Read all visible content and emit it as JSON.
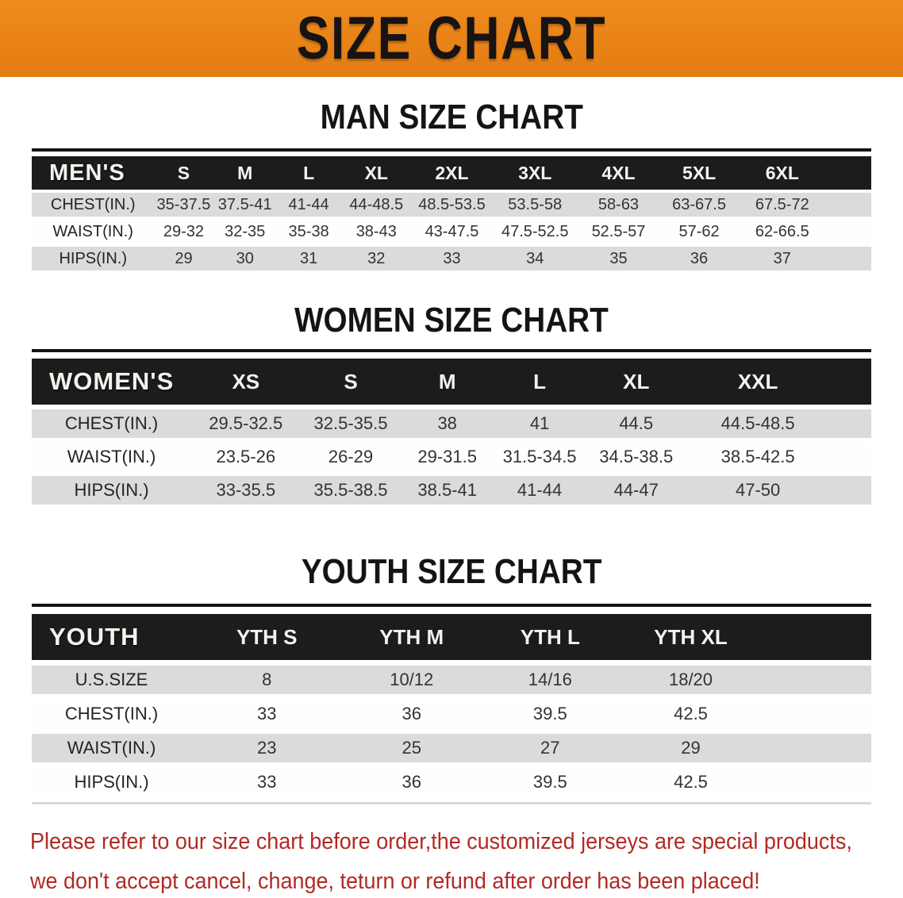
{
  "banner": {
    "title": "SIZE CHART"
  },
  "colors": {
    "banner_orange": "#e8811a",
    "header_bar_black": "#1d1c1c",
    "row_stripe_gray": "#dbdbdb",
    "footnote_red": "#b12a24"
  },
  "sections": [
    {
      "heading": "MAN SIZE CHART",
      "label_header": "MEN'S",
      "columns": [
        "S",
        "M",
        "L",
        "XL",
        "2XL",
        "3XL",
        "4XL",
        "5XL",
        "6XL"
      ],
      "rows": [
        {
          "label": "CHEST(IN.)",
          "values": [
            "35-37.5",
            "37.5-41",
            "41-44",
            "44-48.5",
            "48.5-53.5",
            "53.5-58",
            "58-63",
            "63-67.5",
            "67.5-72"
          ]
        },
        {
          "label": "WAIST(IN.)",
          "values": [
            "29-32",
            "32-35",
            "35-38",
            "38-43",
            "43-47.5",
            "47.5-52.5",
            "52.5-57",
            "57-62",
            "62-66.5"
          ]
        },
        {
          "label": "HIPS(IN.)",
          "values": [
            "29",
            "30",
            "31",
            "32",
            "33",
            "34",
            "35",
            "36",
            "37"
          ]
        }
      ]
    },
    {
      "heading": "WOMEN SIZE CHART",
      "label_header": "WOMEN'S",
      "columns": [
        "XS",
        "S",
        "M",
        "L",
        "XL",
        "XXL"
      ],
      "rows": [
        {
          "label": "CHEST(IN.)",
          "values": [
            "29.5-32.5",
            "32.5-35.5",
            "38",
            "41",
            "44.5",
            "44.5-48.5"
          ]
        },
        {
          "label": "WAIST(IN.)",
          "values": [
            "23.5-26",
            "26-29",
            "29-31.5",
            "31.5-34.5",
            "34.5-38.5",
            "38.5-42.5"
          ]
        },
        {
          "label": "HIPS(IN.)",
          "values": [
            "33-35.5",
            "35.5-38.5",
            "38.5-41",
            "41-44",
            "44-47",
            "47-50"
          ]
        }
      ]
    },
    {
      "heading": "YOUTH SIZE CHART",
      "label_header": "YOUTH",
      "columns": [
        "YTH S",
        "YTH M",
        "YTH L",
        "YTH XL"
      ],
      "rows": [
        {
          "label": "U.S.SIZE",
          "values": [
            "8",
            "10/12",
            "14/16",
            "18/20"
          ]
        },
        {
          "label": "CHEST(IN.)",
          "values": [
            "33",
            "36",
            "39.5",
            "42.5"
          ]
        },
        {
          "label": "WAIST(IN.)",
          "values": [
            "23",
            "25",
            "27",
            "29"
          ]
        },
        {
          "label": "HIPS(IN.)",
          "values": [
            "33",
            "36",
            "39.5",
            "42.5"
          ]
        }
      ]
    }
  ],
  "footnote": {
    "line1": "Please refer to our size chart before order,the customized jerseys are special products,",
    "line2": "we don't accept cancel, change, teturn or refund after order has been placed!"
  }
}
